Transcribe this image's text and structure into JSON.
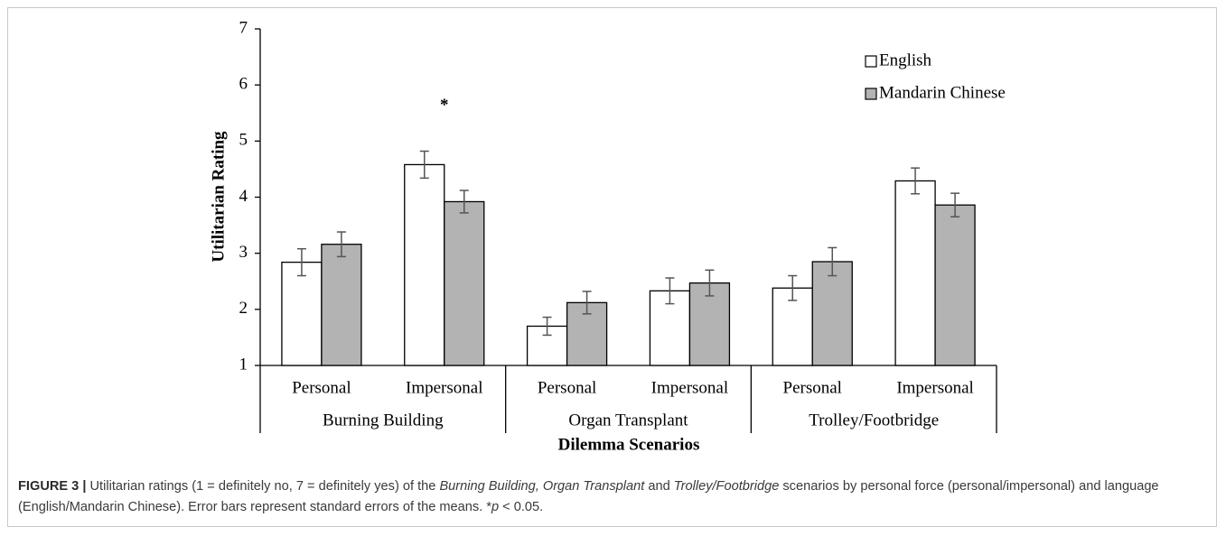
{
  "chart_data": {
    "type": "bar",
    "y_label": "Utilitarian Rating",
    "x_label": "Dilemma Scenarios",
    "categories": [
      "Personal",
      "Impersonal",
      "Personal",
      "Impersonal",
      "Personal",
      "Impersonal"
    ],
    "groups": [
      "Burning Building",
      "Organ Transplant",
      "Trolley/Footbridge"
    ],
    "series": [
      {
        "name": "English",
        "color": "#ffffff",
        "values": [
          2.84,
          4.58,
          1.7,
          2.33,
          2.38,
          4.29
        ],
        "errors": [
          0.24,
          0.24,
          0.16,
          0.23,
          0.22,
          0.23
        ]
      },
      {
        "name": "Mandarin Chinese",
        "color": "#b3b3b3",
        "values": [
          3.16,
          3.92,
          2.12,
          2.47,
          2.85,
          3.86
        ],
        "errors": [
          0.22,
          0.2,
          0.2,
          0.23,
          0.25,
          0.21
        ]
      }
    ],
    "annotations": [
      {
        "text": "*",
        "category": 1
      }
    ],
    "ylim": [
      1,
      7
    ],
    "yticks": [
      1,
      2,
      3,
      4,
      5,
      6,
      7
    ],
    "grid": false,
    "legend": "upper right"
  },
  "caption": {
    "label": "FIGURE 3 |",
    "parts": [
      {
        "text": " Utilitarian ratings (1 = definitely no, 7 = definitely yes) of the ",
        "italic": false
      },
      {
        "text": "Burning Building, Organ Transplant",
        "italic": true
      },
      {
        "text": " and ",
        "italic": false
      },
      {
        "text": "Trolley/Footbridge",
        "italic": true
      },
      {
        "text": " scenarios by personal force (personal/impersonal) and language (English/Mandarin Chinese). Error bars represent standard errors of the means. *",
        "italic": false
      },
      {
        "text": "p",
        "italic": true
      },
      {
        "text": " < 0.05.",
        "italic": false
      }
    ]
  }
}
